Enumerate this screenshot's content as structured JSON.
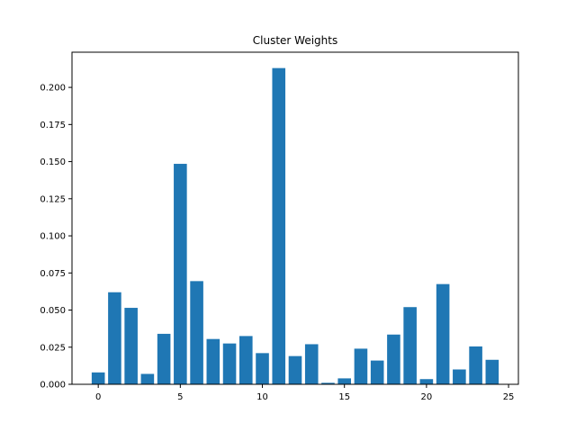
{
  "chart_data": {
    "type": "bar",
    "title": "Cluster Weights",
    "xlabel": "",
    "ylabel": "",
    "x": [
      0,
      1,
      2,
      3,
      4,
      5,
      6,
      7,
      8,
      9,
      10,
      11,
      12,
      13,
      14,
      15,
      16,
      17,
      18,
      19,
      20,
      21,
      22,
      23,
      24
    ],
    "values": [
      0.008,
      0.062,
      0.0515,
      0.007,
      0.034,
      0.1485,
      0.0695,
      0.0305,
      0.0275,
      0.0325,
      0.021,
      0.213,
      0.019,
      0.027,
      0.001,
      0.004,
      0.024,
      0.016,
      0.0335,
      0.052,
      0.0035,
      0.0675,
      0.01,
      0.0255,
      0.0165
    ],
    "xlim": [
      -1.6,
      25.6
    ],
    "ylim": [
      0,
      0.2237
    ],
    "xticks": [
      0,
      5,
      10,
      15,
      20,
      25
    ],
    "xtick_labels": [
      "0",
      "5",
      "10",
      "15",
      "20",
      "25"
    ],
    "yticks": [
      0,
      0.025,
      0.05,
      0.075,
      0.1,
      0.125,
      0.15,
      0.175,
      0.2
    ],
    "ytick_labels": [
      "0.000",
      "0.025",
      "0.050",
      "0.075",
      "0.100",
      "0.125",
      "0.150",
      "0.175",
      "0.200"
    ],
    "bar_color": "#1f77b4",
    "grid": false,
    "legend": "none"
  }
}
